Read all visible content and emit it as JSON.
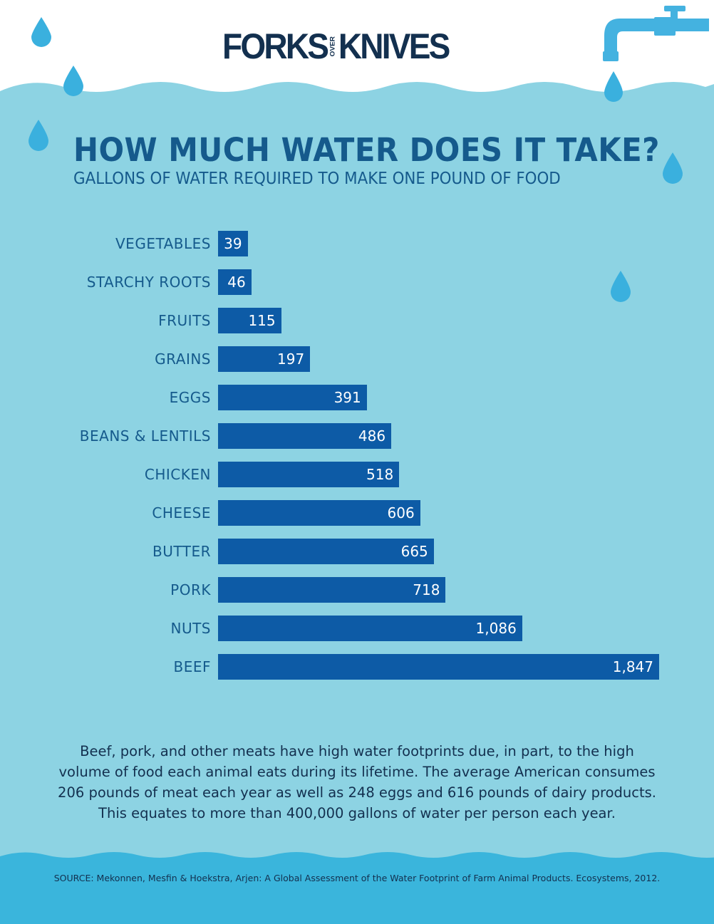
{
  "brand": {
    "logo_text_left": "FORKS",
    "logo_text_mid": "OVER",
    "logo_text_right": "KNIVES"
  },
  "colors": {
    "water": "#8dd3e3",
    "deep_water": "#3ab5dc",
    "bar": "#0d5ba6",
    "title": "#155a8c",
    "drop": "#3ab0de"
  },
  "chart_data": {
    "type": "bar",
    "orientation": "horizontal",
    "title": "HOW MUCH WATER DOES IT TAKE?",
    "subtitle": "GALLONS OF WATER REQUIRED TO MAKE ONE POUND OF FOOD",
    "categories": [
      "VEGETABLES",
      "STARCHY ROOTS",
      "FRUITS",
      "GRAINS",
      "EGGS",
      "BEANS & LENTILS",
      "CHICKEN",
      "CHEESE",
      "BUTTER",
      "PORK",
      "NUTS",
      "BEEF"
    ],
    "values": [
      39,
      46,
      115,
      197,
      391,
      486,
      518,
      606,
      665,
      718,
      1086,
      1847
    ],
    "value_labels": [
      "39",
      "46",
      "115",
      "197",
      "391",
      "486",
      "518",
      "606",
      "665",
      "718",
      "1,086",
      "1,847"
    ],
    "grid": false
  },
  "body_text": "Beef, pork, and other meats have high water footprints due, in part, to the high volume of food each animal eats during its lifetime. The average American consumes 206 pounds of meat each year as well as 248 eggs and 616 pounds of dairy products. This equates to more than 400,000 gallons of water per person each year.",
  "source": "SOURCE: Mekonnen, Mesfin & Hoekstra, Arjen: A Global Assessment of the Water Footprint of Farm Animal Products. Ecosystems, 2012."
}
